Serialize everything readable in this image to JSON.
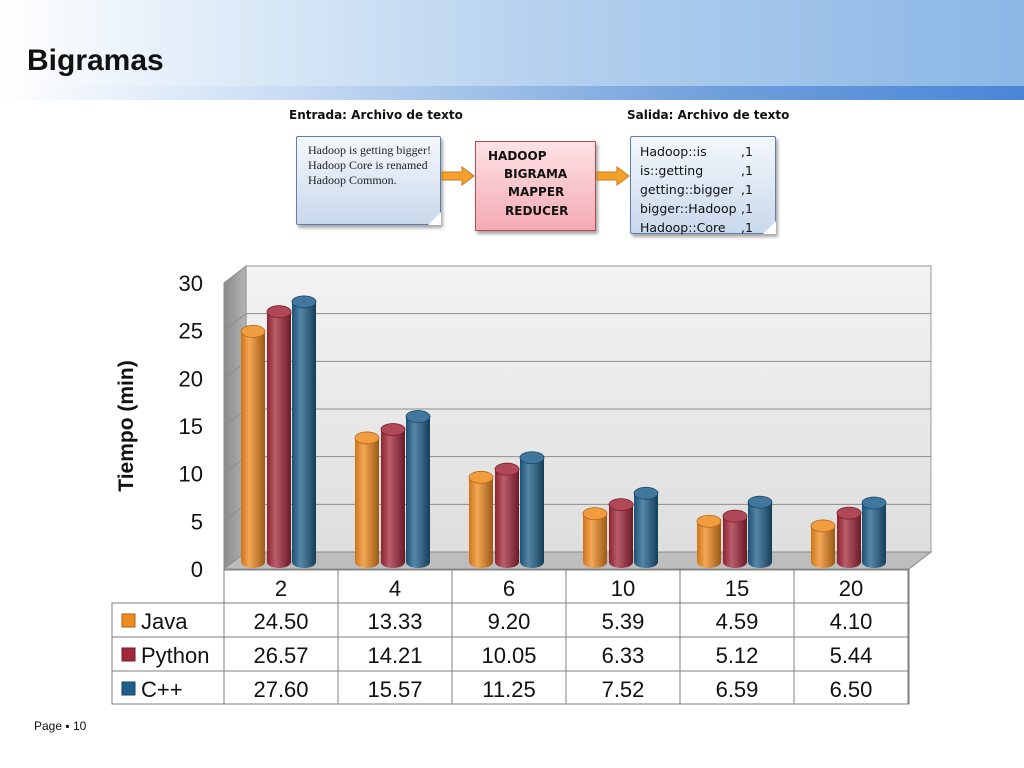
{
  "slide": {
    "title": "Bigramas",
    "page_label": "Page",
    "page_sep": "▪",
    "page_number": "10"
  },
  "diagram": {
    "input_caption": "Entrada: Archivo de texto",
    "output_caption": "Salida: Archivo de texto",
    "input_text": "Hadoop is getting bigger! Hadoop Core is renamed Hadoop Common.",
    "process_lines": [
      "HADOOP",
      "BIGRAMA",
      "MAPPER",
      "REDUCER"
    ],
    "output_rows": [
      {
        "key": "Hadoop::is",
        "val": ",1"
      },
      {
        "key": "is::getting",
        "val": ",1"
      },
      {
        "key": "getting::bigger",
        "val": ",1"
      },
      {
        "key": "bigger::Hadoop",
        "val": ",1"
      },
      {
        "key": "Hadoop::Core",
        "val": ",1"
      }
    ],
    "colors": {
      "note_border": "#5c7fae",
      "process_fill": "#f4aab3",
      "arrow": "#f5a02a"
    }
  },
  "chart_data": {
    "type": "bar",
    "ylabel": "Tiempo (min)",
    "ylim": [
      0,
      30
    ],
    "yticks": [
      0,
      5,
      10,
      15,
      20,
      25,
      30
    ],
    "categories": [
      "2",
      "4",
      "6",
      "10",
      "15",
      "20"
    ],
    "series": [
      {
        "name": "Java",
        "color": "#f08a1e",
        "values": [
          24.5,
          13.33,
          9.2,
          5.39,
          4.59,
          4.1
        ],
        "labels": [
          "24.50",
          "13.33",
          "9.20",
          "5.39",
          "4.59",
          "4.10"
        ]
      },
      {
        "name": "Python",
        "color": "#a3283a",
        "values": [
          26.57,
          14.21,
          10.05,
          6.33,
          5.12,
          5.44
        ],
        "labels": [
          "26.57",
          "14.21",
          "10.05",
          "6.33",
          "5.12",
          "5.44"
        ]
      },
      {
        "name": "C++",
        "color": "#1f5f8a",
        "values": [
          27.6,
          15.57,
          11.25,
          7.52,
          6.59,
          6.5
        ],
        "labels": [
          "27.60",
          "15.57",
          "11.25",
          "7.52",
          "6.59",
          "6.50"
        ]
      }
    ],
    "grid": true,
    "legend": "data-table"
  }
}
